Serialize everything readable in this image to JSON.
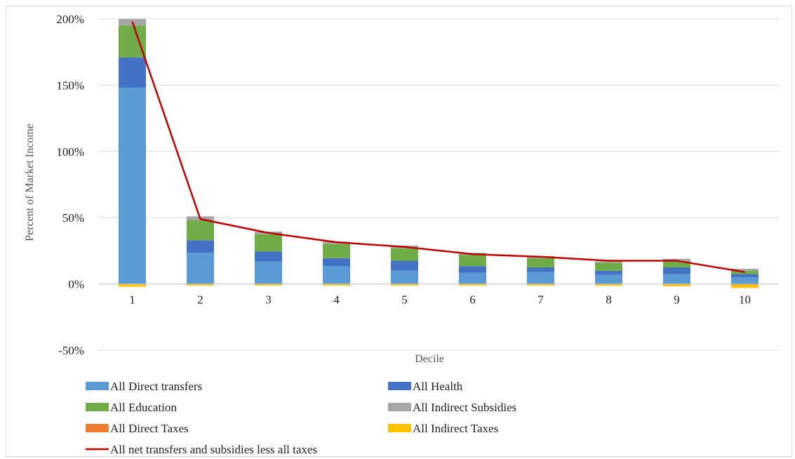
{
  "chart_data": {
    "type": "bar",
    "subtype": "stacked-bar-with-line",
    "title": "",
    "xlabel": "Decile",
    "ylabel": "Percent of Market Income",
    "ylim": [
      -50,
      200
    ],
    "ytick_values": [
      -50,
      0,
      50,
      100,
      150,
      200
    ],
    "ytick_labels": [
      "-50%",
      "0%",
      "50%",
      "100%",
      "150%",
      "200%"
    ],
    "grid": true,
    "legend_position": "bottom",
    "categories": [
      "1",
      "2",
      "3",
      "4",
      "5",
      "6",
      "7",
      "8",
      "9",
      "10"
    ],
    "series": [
      {
        "name": "All Direct transfers",
        "kind": "bar",
        "color": "#5b9bd5",
        "values": [
          148,
          23.5,
          17,
          13.5,
          10,
          8.5,
          9,
          7,
          7.5,
          5
        ]
      },
      {
        "name": "All Health",
        "kind": "bar",
        "color": "#4472c4",
        "values": [
          23,
          9.5,
          7.5,
          6,
          7.5,
          5,
          3.5,
          3,
          5,
          2.5
        ]
      },
      {
        "name": "All Education",
        "kind": "bar",
        "color": "#70ad47",
        "values": [
          24,
          15,
          13,
          10.5,
          9.5,
          8.5,
          7,
          6,
          4.5,
          2.5
        ]
      },
      {
        "name": "All Indirect Subsidies",
        "kind": "bar",
        "color": "#a5a5a5",
        "values": [
          5,
          3,
          2,
          2,
          2,
          1.5,
          1.5,
          1,
          2,
          1.5
        ]
      },
      {
        "name": "All Direct Taxes",
        "kind": "bar",
        "color": "#ed7d31",
        "values": [
          -0.3,
          -0.2,
          -0.2,
          -0.2,
          -0.2,
          -0.2,
          -0.2,
          -0.2,
          -0.2,
          -0.5
        ]
      },
      {
        "name": "All Indirect Taxes",
        "kind": "bar",
        "color": "#ffc000",
        "values": [
          -1.8,
          -1,
          -1,
          -1,
          -1,
          -1,
          -1,
          -1.2,
          -1.5,
          -2.5
        ]
      },
      {
        "name": "All net transfers and subsidies less all taxes",
        "kind": "line",
        "color": "#c00000",
        "values": [
          198,
          49,
          38.5,
          31.5,
          28,
          22.5,
          20.5,
          17.5,
          17.5,
          9
        ]
      }
    ]
  }
}
